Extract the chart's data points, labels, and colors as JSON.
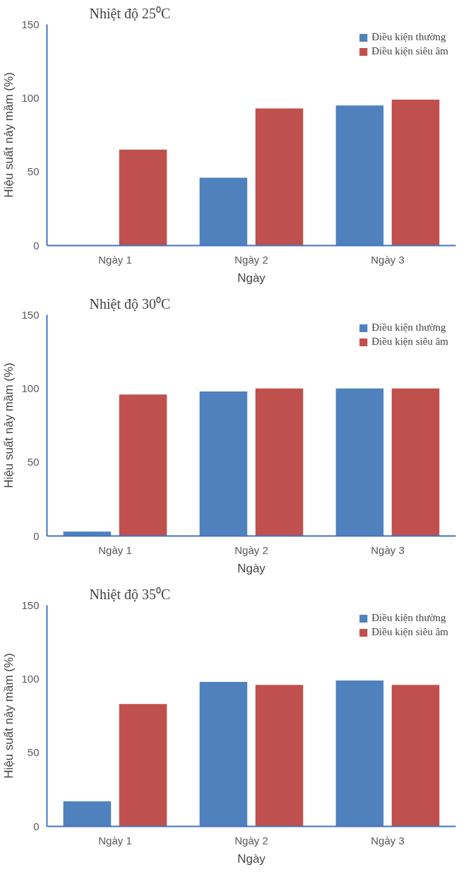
{
  "chart_data": [
    {
      "type": "bar",
      "title": "Nhiệt độ 25⁰C",
      "xlabel": "Ngày",
      "ylabel": "Hiệu suất nảy mầm (%)",
      "categories": [
        "Ngày 1",
        "Ngày 2",
        "Ngày 3"
      ],
      "series": [
        {
          "name": "Điều kiện thường",
          "color": "#4f81bd",
          "values": [
            0,
            46,
            95
          ]
        },
        {
          "name": "Điều kiện siêu âm",
          "color": "#c0504d",
          "values": [
            65,
            93,
            99
          ]
        }
      ],
      "ylim": [
        0,
        150
      ],
      "yticks": [
        0,
        50,
        100,
        150
      ],
      "grid": false,
      "legend": "top right"
    },
    {
      "type": "bar",
      "title": "Nhiệt độ 30⁰C",
      "xlabel": "Ngày",
      "ylabel": "Hiệu suất nảy mầm (%)",
      "categories": [
        "Ngày 1",
        "Ngày 2",
        "Ngày 3"
      ],
      "series": [
        {
          "name": "Điều kiện thường",
          "color": "#4f81bd",
          "values": [
            3,
            98,
            100
          ]
        },
        {
          "name": "Điều kiện siêu âm",
          "color": "#c0504d",
          "values": [
            96,
            100,
            100
          ]
        }
      ],
      "ylim": [
        0,
        150
      ],
      "yticks": [
        0,
        50,
        100,
        150
      ],
      "grid": false,
      "legend": "top right"
    },
    {
      "type": "bar",
      "title": "Nhiệt độ 35⁰C",
      "xlabel": "Ngày",
      "ylabel": "Hiệu suất nảy mầm (%)",
      "categories": [
        "Ngày 1",
        "Ngày 2",
        "Ngày 3"
      ],
      "series": [
        {
          "name": "Điều kiện thường",
          "color": "#4f81bd",
          "values": [
            17,
            98,
            99
          ]
        },
        {
          "name": "Điều kiện siêu âm",
          "color": "#c0504d",
          "values": [
            83,
            96,
            96
          ]
        }
      ],
      "ylim": [
        0,
        150
      ],
      "yticks": [
        0,
        50,
        100,
        150
      ],
      "grid": false,
      "legend": "top right"
    }
  ]
}
